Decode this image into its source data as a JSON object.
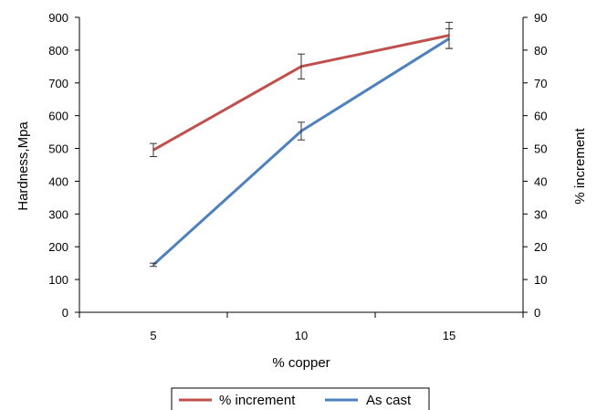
{
  "chart_data": {
    "type": "line",
    "title": "",
    "x": [
      5,
      10,
      15
    ],
    "xlabel": "% copper",
    "ylabel": "Hardness,Mpa",
    "y2label": "% increment",
    "ylim": [
      0,
      900
    ],
    "y2lim": [
      0,
      90
    ],
    "yticks": [
      "0",
      "100",
      "200",
      "300",
      "400",
      "500",
      "600",
      "700",
      "800",
      "900"
    ],
    "y2ticks": [
      "0",
      "10",
      "20",
      "30",
      "40",
      "50",
      "60",
      "70",
      "80",
      "90"
    ],
    "xticks": [
      "5",
      "10",
      "15"
    ],
    "grid": false,
    "legend_position": "bottom",
    "series": [
      {
        "name": "% increment",
        "values": [
          495,
          750,
          845
        ],
        "errors": [
          20,
          38,
          40
        ],
        "color": "#c0504d"
      },
      {
        "name": "As cast",
        "values": [
          145,
          553,
          835
        ],
        "errors": [
          5,
          27,
          30
        ],
        "color": "#4f81bd"
      }
    ]
  }
}
